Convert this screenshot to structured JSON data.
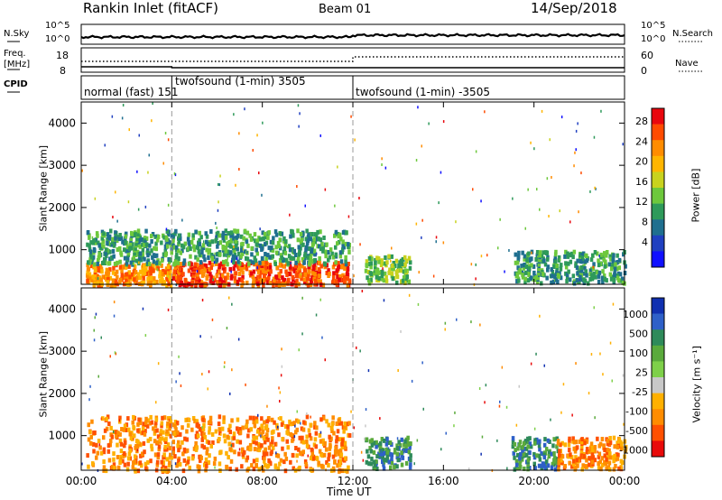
{
  "header": {
    "station": "Rankin Inlet (fitACF)",
    "beam": "Beam 01",
    "date": "14/Sep/2018"
  },
  "top_panels": {
    "nsky_label": "N.Sky",
    "nsky_ticks": [
      "10^5",
      "10^0"
    ],
    "nsearch_label": "N.Search",
    "nsearch_ticks": [
      "10^5",
      "10^0"
    ],
    "freq_label_1": "Freq.",
    "freq_label_2": "[MHz]",
    "freq_ticks": [
      "18",
      "8"
    ],
    "nave_label": "Nave",
    "nave_ticks": [
      "60",
      "0"
    ],
    "cpid_label": "CPID",
    "cpid_segments": [
      {
        "label": "normal (fast) 151",
        "start_hour": 0.0,
        "end_hour": 4.0
      },
      {
        "label": "twofsound (1-min) 3505",
        "start_hour": 4.0,
        "end_hour": 12.0
      },
      {
        "label": "twofsound (1-min) -3505",
        "start_hour": 12.0,
        "end_hour": 24.0
      }
    ]
  },
  "chart_data": [
    {
      "type": "heatmap",
      "name": "Power",
      "ylabel": "Slant Range [km]",
      "xlabel": "Time UT",
      "xlim": [
        0,
        24
      ],
      "ylim": [
        180,
        4500
      ],
      "x_ticks": [
        "00:00",
        "04:00",
        "08:00",
        "12:00",
        "16:00",
        "20:00",
        "00:00"
      ],
      "y_ticks": [
        1000,
        2000,
        3000,
        4000
      ],
      "colorbar_label": "Power [dB]",
      "colorbar_ticks": [
        "28",
        "24",
        "20",
        "16",
        "12",
        "8",
        "4"
      ],
      "colorbar_colors": [
        "#e8070e",
        "#ff4b00",
        "#ff8c00",
        "#ffb500",
        "#c8d21e",
        "#6dc83c",
        "#2e9a5a",
        "#1f6f8f",
        "#2040c0",
        "#1010ff"
      ],
      "regions": [
        {
          "t0": 0.2,
          "t1": 3.9,
          "r0": 200,
          "r1": 700,
          "level": 7
        },
        {
          "t0": 4.0,
          "t1": 11.8,
          "r0": 200,
          "r1": 750,
          "level": 8
        },
        {
          "t0": 0.2,
          "t1": 11.8,
          "r0": 700,
          "r1": 1500,
          "level": 3
        },
        {
          "t0": 12.5,
          "t1": 14.5,
          "r0": 250,
          "r1": 900,
          "level": 4
        },
        {
          "t0": 19.0,
          "t1": 24.0,
          "r0": 250,
          "r1": 1000,
          "level": 3
        }
      ]
    },
    {
      "type": "heatmap",
      "name": "Velocity",
      "ylabel": "Slant Range [km]",
      "xlabel": "Time UT",
      "xlim": [
        0,
        24
      ],
      "ylim": [
        180,
        4500
      ],
      "x_ticks": [
        "00:00",
        "04:00",
        "08:00",
        "12:00",
        "16:00",
        "20:00",
        "00:00"
      ],
      "y_ticks": [
        1000,
        2000,
        3000,
        4000
      ],
      "colorbar_label": "Velocity [m s⁻¹]",
      "colorbar_ticks": [
        "1000",
        "500",
        "100",
        "25",
        "-25",
        "-100",
        "-500",
        "-1000"
      ],
      "colorbar_colors": [
        "#1030b0",
        "#2e60c8",
        "#2e8a5a",
        "#5aaa3c",
        "#7ed04a",
        "#c8c8c8",
        "#ffb000",
        "#ff8c00",
        "#ff5000",
        "#e80a0a"
      ],
      "regions": [
        {
          "t0": 0.2,
          "t1": 11.8,
          "r0": 200,
          "r1": 1500,
          "level": 2
        },
        {
          "t0": 12.5,
          "t1": 14.5,
          "r0": 250,
          "r1": 1000,
          "level": 7
        },
        {
          "t0": 19.0,
          "t1": 21.0,
          "r0": 250,
          "r1": 1000,
          "level": 7
        },
        {
          "t0": 21.0,
          "t1": 24.0,
          "r0": 250,
          "r1": 1000,
          "level": 2
        }
      ]
    }
  ]
}
